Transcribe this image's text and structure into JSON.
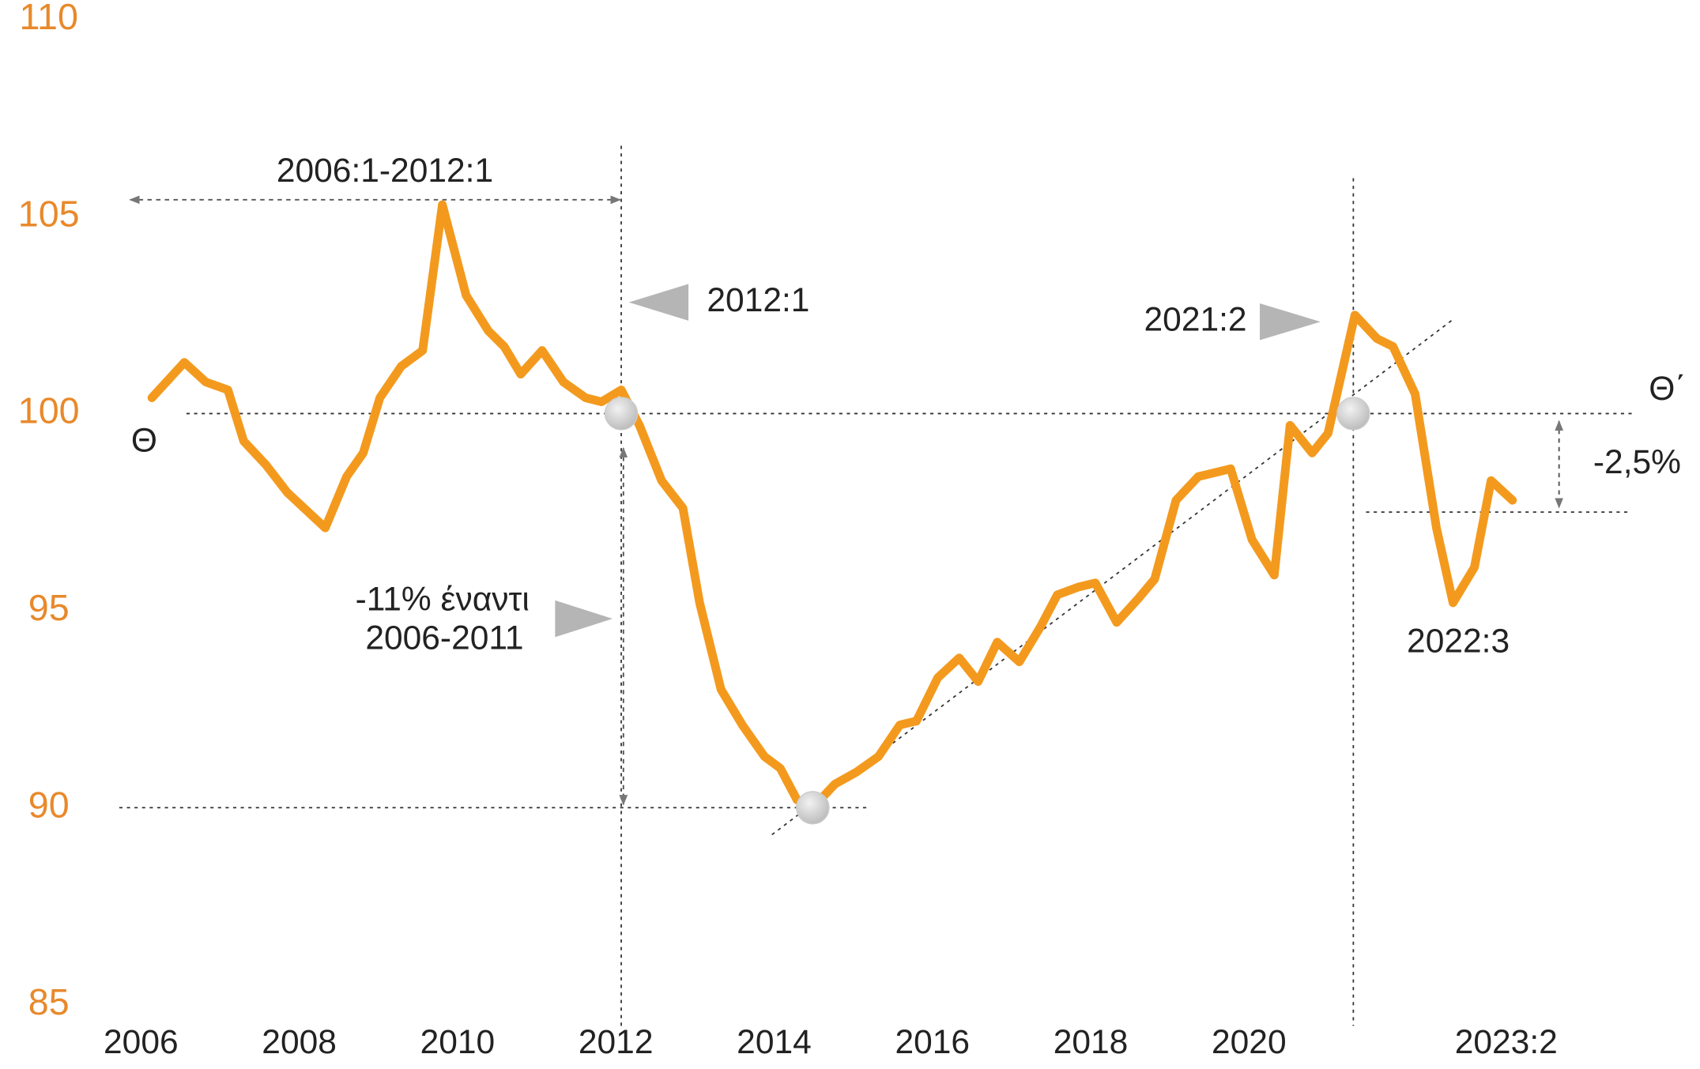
{
  "chart_data": {
    "type": "line",
    "x": [
      2006.07,
      2006.48,
      2006.75,
      2007.03,
      2007.23,
      2007.51,
      2007.78,
      2008.26,
      2008.53,
      2008.74,
      2008.95,
      2009.22,
      2009.49,
      2009.74,
      2010.04,
      2010.32,
      2010.52,
      2010.73,
      2011.0,
      2011.27,
      2011.55,
      2011.75,
      2012.0,
      2012.23,
      2012.51,
      2012.78,
      2012.99,
      2013.26,
      2013.53,
      2013.81,
      2014.01,
      2014.22,
      2014.42,
      2014.7,
      2014.97,
      2015.25,
      2015.52,
      2015.73,
      2016.0,
      2016.27,
      2016.51,
      2016.75,
      2017.03,
      2017.3,
      2017.51,
      2017.78,
      2017.99,
      2018.26,
      2018.53,
      2018.74,
      2019.01,
      2019.29,
      2019.7,
      2019.97,
      2020.25,
      2020.45,
      2020.73,
      2020.93,
      2021.27,
      2021.55,
      2021.75,
      2022.03,
      2022.3,
      2022.51,
      2022.78,
      2022.99,
      2023.26
    ],
    "series": [
      {
        "color": "#f39a1e",
        "values": [
          100.4,
          101.3,
          100.8,
          100.6,
          99.3,
          98.7,
          98.0,
          97.1,
          98.4,
          99.0,
          100.4,
          101.2,
          101.6,
          105.3,
          103.0,
          102.1,
          101.7,
          101.0,
          101.6,
          100.8,
          100.4,
          100.3,
          100.6,
          99.7,
          98.3,
          97.6,
          95.2,
          93.0,
          92.1,
          91.3,
          91.0,
          90.2,
          90.0,
          90.6,
          90.9,
          91.3,
          92.1,
          92.2,
          93.3,
          93.8,
          93.2,
          94.2,
          93.7,
          94.6,
          95.4,
          95.6,
          95.7,
          94.7,
          95.3,
          95.8,
          97.8,
          98.4,
          98.6,
          96.8,
          95.9,
          99.7,
          99.0,
          99.5,
          102.5,
          101.9,
          101.7,
          100.5,
          97.1,
          95.2,
          96.1,
          98.3,
          97.8
        ]
      }
    ],
    "xlim": [
      2006,
      2024.5
    ],
    "xticks": [
      2006,
      2008,
      2010,
      2012,
      2014,
      2016,
      2018,
      2020,
      {
        "value": 2023.25,
        "label": "2023:2"
      }
    ],
    "ylim": [
      85,
      110
    ],
    "yticks": [
      85,
      90,
      95,
      100,
      105,
      110
    ],
    "markers": [
      {
        "x": 2012,
        "y": 100
      },
      {
        "x": 2014.42,
        "y": 90
      },
      {
        "x": 2021.25,
        "y": 100
      }
    ],
    "reference_lines": [
      {
        "y": 100
      },
      {
        "y": 90
      },
      {
        "y": 97.5
      },
      {
        "x": 2012
      },
      {
        "x": 2021.25
      }
    ],
    "annotations": [
      "2006:1-2012:1",
      "2012:1",
      "2021:2",
      "Θ",
      "Θ΄",
      "-2,5%",
      "-11% έναντι",
      "2006-2011",
      "2022:3"
    ]
  }
}
